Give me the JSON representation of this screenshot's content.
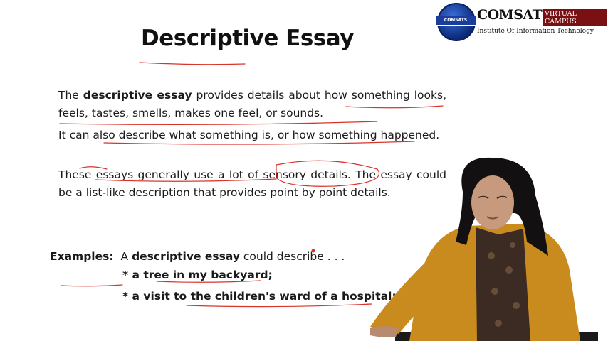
{
  "slide": {
    "title": "Descriptive Essay",
    "p1_pre": "The ",
    "p1_bold": "descriptive essay",
    "p1_post": " provides details about how something looks, feels, tastes, smells, makes one feel, or sounds.",
    "p2": "It can also describe what something is, or how something happened.",
    "p3": "These essays generally use a lot of sensory details. The essay could be a list-like description that provides point by point details.",
    "examples_label": "Examples:",
    "examples_intro_pre": "A ",
    "examples_intro_bold": "descriptive essay",
    "examples_intro_post": " could describe . . .",
    "example_items": [
      "* a tree in my backyard;",
      "* a visit to the children's ward of a hospital;"
    ]
  },
  "logo": {
    "name": "COMSATS",
    "badge": "VIRTUAL CAMPUS",
    "subtitle": "Institute Of Information Technology",
    "emblem_text": "COMSATS",
    "brand_color": "#0b2a7a",
    "badge_color": "#7a0f14"
  },
  "colors": {
    "annotation_ink": "#d9332b",
    "presenter_jacket": "#c98a1e"
  }
}
